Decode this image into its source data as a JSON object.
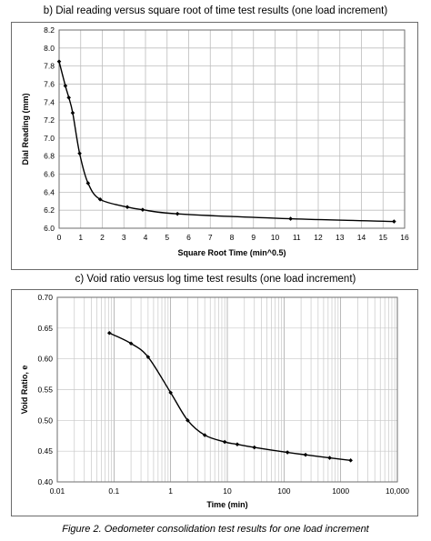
{
  "caption": "Figure 2. Oedometer consolidation test results for one load increment",
  "chart_data": [
    {
      "type": "line",
      "title": "b)  Dial reading versus square root of time test results (one load increment)",
      "xlabel": "Square Root Time (min^0.5)",
      "ylabel": "Dial Reading (mm)",
      "xlim": [
        0,
        16
      ],
      "ylim": [
        6.0,
        8.2
      ],
      "xticks": [
        "0",
        "1",
        "2",
        "3",
        "4",
        "5",
        "6",
        "7",
        "8",
        "9",
        "10",
        "11",
        "12",
        "13",
        "14",
        "15",
        "16"
      ],
      "yticks": [
        "6.0",
        "6.2",
        "6.4",
        "6.6",
        "6.8",
        "7.0",
        "7.2",
        "7.4",
        "7.6",
        "7.8",
        "8.0",
        "8.2"
      ],
      "grid": true,
      "color": "#000000",
      "x": [
        0,
        0.29,
        0.45,
        0.63,
        0.95,
        1.34,
        1.9,
        3.16,
        3.87,
        5.48,
        10.72,
        15.51
      ],
      "y": [
        7.85,
        7.58,
        7.45,
        7.28,
        6.83,
        6.5,
        6.32,
        6.235,
        6.205,
        6.16,
        6.105,
        6.075
      ]
    },
    {
      "type": "line",
      "title": "c)  Void ratio versus log time test results (one load increment)",
      "xlabel": "Time (min)",
      "ylabel": "Void Ratio, e",
      "xscale": "log",
      "xlim": [
        0.01,
        10000
      ],
      "ylim": [
        0.4,
        0.7
      ],
      "xticks": [
        "0.01",
        "0.1",
        "1",
        "10",
        "100",
        "1000",
        "10,000"
      ],
      "yticks": [
        "0.40",
        "0.45",
        "0.50",
        "0.55",
        "0.60",
        "0.65",
        "0.70"
      ],
      "grid": true,
      "color": "#000000",
      "x": [
        0.083,
        0.2,
        0.4,
        1,
        2,
        4,
        9,
        15,
        30,
        115,
        240,
        640,
        1500
      ],
      "y": [
        0.642,
        0.625,
        0.603,
        0.545,
        0.5,
        0.476,
        0.465,
        0.461,
        0.456,
        0.448,
        0.444,
        0.439,
        0.435
      ]
    }
  ]
}
